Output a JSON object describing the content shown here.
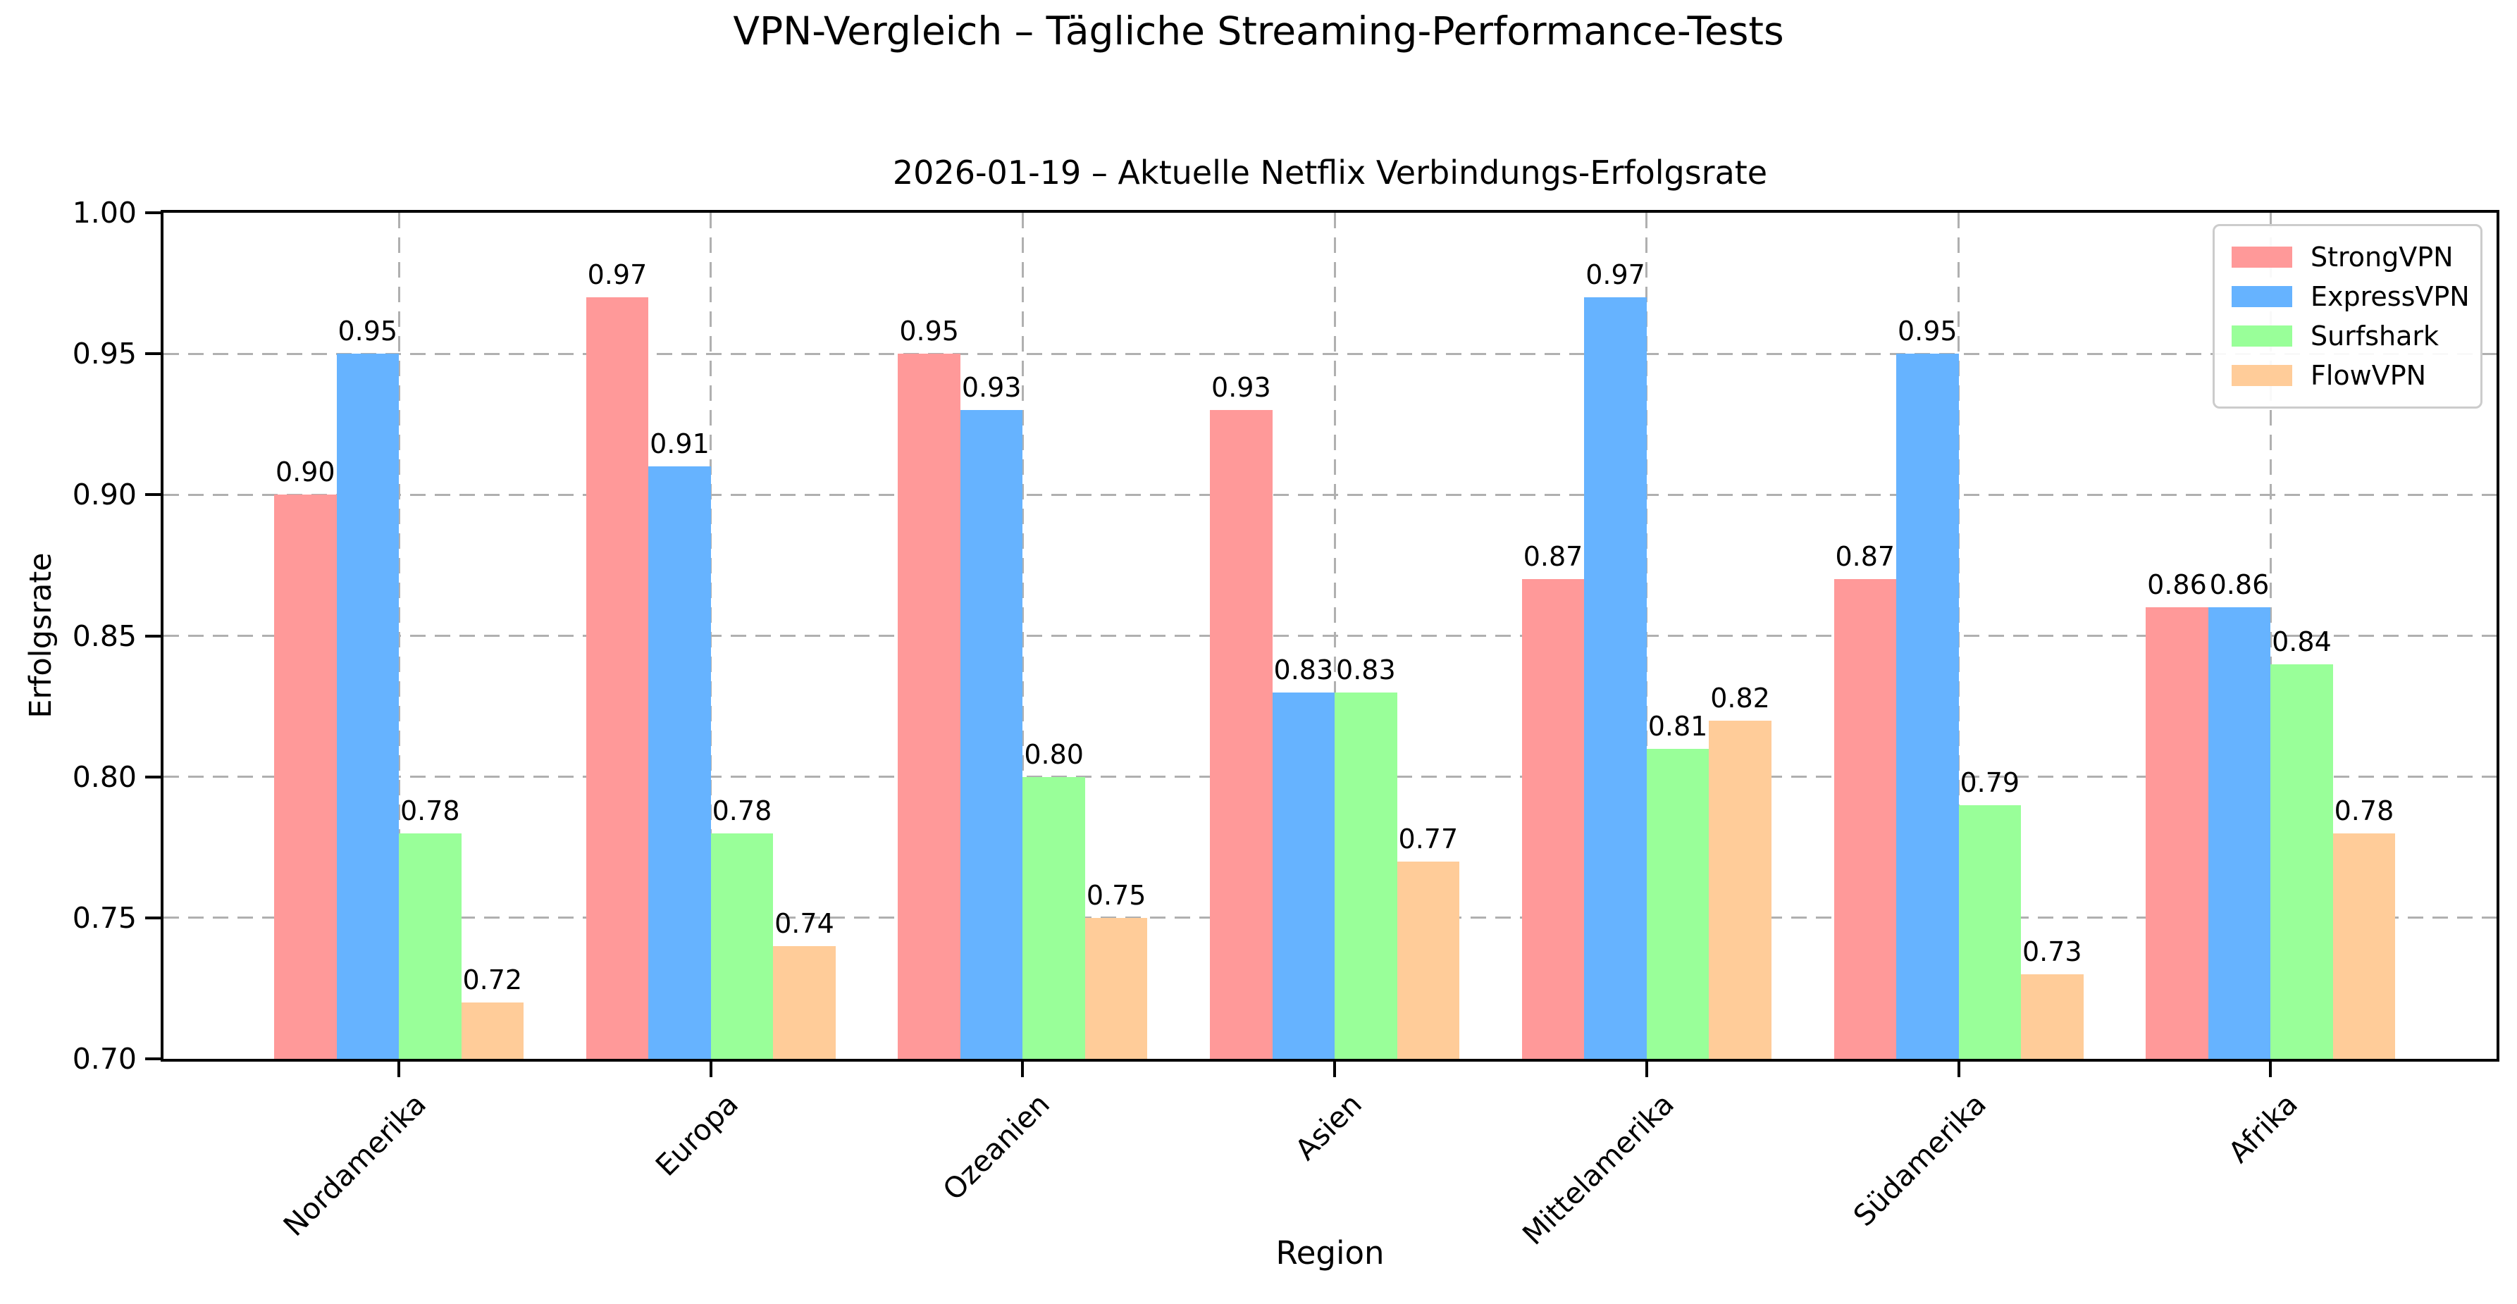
{
  "chart_data": {
    "type": "bar",
    "suptitle": "VPN-Vergleich – Tägliche Streaming-Performance-Tests",
    "title": "2026-01-19 – Aktuelle Netflix Verbindungs-Erfolgsrate",
    "xlabel": "Region",
    "ylabel": "Erfolgsrate",
    "categories": [
      "Nordamerika",
      "Europa",
      "Ozeanien",
      "Asien",
      "Mittelamerika",
      "Südamerika",
      "Afrika"
    ],
    "series": [
      {
        "name": "StrongVPN",
        "color": "#ff9999",
        "values": [
          0.9,
          0.97,
          0.95,
          0.93,
          0.87,
          0.87,
          0.86
        ]
      },
      {
        "name": "ExpressVPN",
        "color": "#66b3ff",
        "values": [
          0.95,
          0.91,
          0.93,
          0.83,
          0.97,
          0.95,
          0.86
        ]
      },
      {
        "name": "Surfshark",
        "color": "#99ff99",
        "values": [
          0.78,
          0.78,
          0.8,
          0.83,
          0.81,
          0.79,
          0.84
        ]
      },
      {
        "name": "FlowVPN",
        "color": "#ffcc99",
        "values": [
          0.72,
          0.74,
          0.75,
          0.77,
          0.82,
          0.73,
          0.78
        ]
      }
    ],
    "ylim": [
      0.7,
      1.0
    ],
    "ytick_labels": [
      "0.70",
      "0.75",
      "0.80",
      "0.85",
      "0.90",
      "0.95",
      "1.00"
    ],
    "bar_label_decimals": 2,
    "grid": "dashed-both-axes",
    "legend_position": "top-right",
    "colors": {
      "grid": "#b0b0b0",
      "spine": "#000000",
      "text": "#000000",
      "legend_border": "#cccccc",
      "background": "#ffffff"
    }
  }
}
